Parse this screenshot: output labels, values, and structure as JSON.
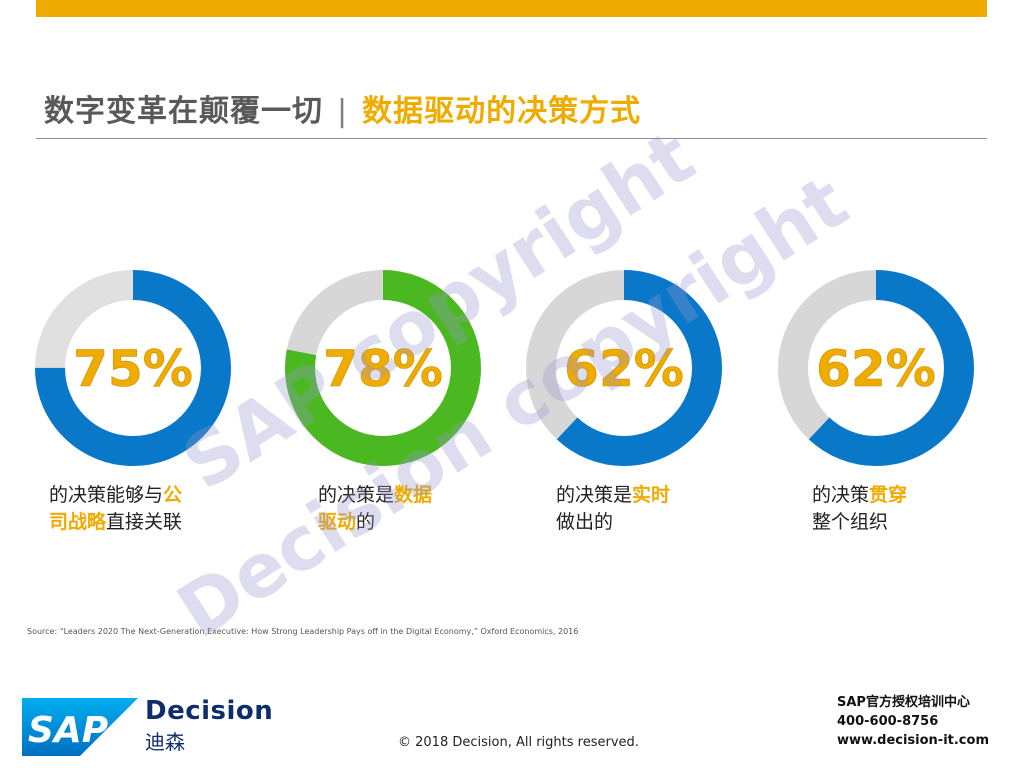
{
  "header": {
    "title_left": "数字变革在颠覆一切",
    "separator": "|",
    "title_right": "数据驱动的决策方式",
    "accent_color": "#f0ab00"
  },
  "chart_data": {
    "type": "pie",
    "variant": "donut",
    "series": [
      {
        "value": 75,
        "label": "75%",
        "color": "#0a78c8",
        "track_color": "#e0e0e0"
      },
      {
        "value": 78,
        "label": "78%",
        "color": "#4cb821",
        "track_color": "#d7d7d7"
      },
      {
        "value": 62,
        "label": "62%",
        "color": "#0a78c8",
        "track_color": "#d7d7d7"
      },
      {
        "value": 62,
        "label": "62%",
        "color": "#0a78c8",
        "track_color": "#d7d7d7"
      }
    ]
  },
  "captions": [
    {
      "line1_plain": "的决策能够与",
      "line1_hl": "公",
      "line2_hl": "司战略",
      "line2_plain": "直接关联"
    },
    {
      "line1_plain": "的决策是",
      "line1_hl": "数据",
      "line2_hl": "驱动",
      "line2_plain": "的"
    },
    {
      "line1_plain": "的决策是",
      "line1_hl": "实时",
      "line2_hl": "",
      "line2_plain": "做出的"
    },
    {
      "line1_plain": "的决策",
      "line1_hl": "贯穿",
      "line2_hl": "",
      "line2_plain": "整个组织"
    }
  ],
  "source": "Source: “Leaders 2020 The Next-Generation Executive: How Strong Leadership Pays off in the Digital Economy,” Oxford Economics, 2016",
  "watermark": {
    "line1": "SAP copyright",
    "line2": "Decision copyright"
  },
  "footer": {
    "logo_text": "SAP",
    "brand_name": "Decision",
    "brand_cn": "迪森",
    "copyright": "© 2018 Decision, All rights reserved.",
    "contact_line1": "SAP官方授权培训中心",
    "contact_line2": "400-600-8756",
    "contact_line3": "www.decision-it.com"
  }
}
